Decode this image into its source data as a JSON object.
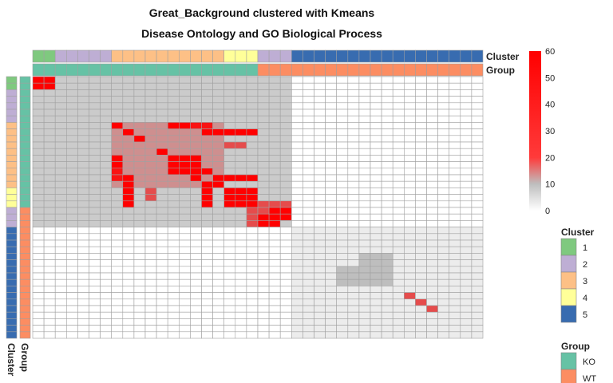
{
  "chart_data": {
    "type": "heatmap",
    "title": "Great_Background clustered with Kmeans",
    "subtitle": "Disease Ontology and GO Biological Process",
    "n_samples": 40,
    "color_scale": {
      "range": [
        0,
        60
      ],
      "ticks": [
        0,
        10,
        20,
        30,
        40,
        50,
        60
      ],
      "low_color": "#ffffff",
      "mid_color": "#bebebe",
      "high_color": "#ff0000"
    },
    "column_annotations": [
      {
        "label": "Cluster",
        "values": [
          1,
          1,
          2,
          2,
          2,
          2,
          2,
          3,
          3,
          3,
          3,
          3,
          3,
          3,
          3,
          3,
          3,
          4,
          4,
          4,
          2,
          2,
          2,
          5,
          5,
          5,
          5,
          5,
          5,
          5,
          5,
          5,
          5,
          5,
          5,
          5,
          5,
          5,
          5,
          5
        ]
      },
      {
        "label": "Group",
        "values": [
          "KO",
          "KO",
          "KO",
          "KO",
          "KO",
          "KO",
          "KO",
          "KO",
          "KO",
          "KO",
          "KO",
          "KO",
          "KO",
          "KO",
          "KO",
          "KO",
          "KO",
          "KO",
          "KO",
          "KO",
          "WT",
          "WT",
          "WT",
          "WT",
          "WT",
          "WT",
          "WT",
          "WT",
          "WT",
          "WT",
          "WT",
          "WT",
          "WT",
          "WT",
          "WT",
          "WT",
          "WT",
          "WT",
          "WT",
          "WT"
        ]
      }
    ],
    "row_annotations": [
      {
        "label": "Cluster",
        "values": [
          1,
          1,
          2,
          2,
          2,
          2,
          2,
          3,
          3,
          3,
          3,
          3,
          3,
          3,
          3,
          3,
          3,
          4,
          4,
          4,
          2,
          2,
          2,
          5,
          5,
          5,
          5,
          5,
          5,
          5,
          5,
          5,
          5,
          5,
          5,
          5,
          5,
          5,
          5,
          5
        ]
      },
      {
        "label": "Group",
        "values": [
          "KO",
          "KO",
          "KO",
          "KO",
          "KO",
          "KO",
          "KO",
          "KO",
          "KO",
          "KO",
          "KO",
          "KO",
          "KO",
          "KO",
          "KO",
          "KO",
          "KO",
          "KO",
          "KO",
          "KO",
          "WT",
          "WT",
          "WT",
          "WT",
          "WT",
          "WT",
          "WT",
          "WT",
          "WT",
          "WT",
          "WT",
          "WT",
          "WT",
          "WT",
          "WT",
          "WT",
          "WT",
          "WT",
          "WT",
          "WT"
        ]
      }
    ],
    "legends": [
      {
        "title": "Cluster",
        "items": [
          {
            "label": "1",
            "color": "#7fc97f"
          },
          {
            "label": "2",
            "color": "#beaed4"
          },
          {
            "label": "3",
            "color": "#fdc086"
          },
          {
            "label": "4",
            "color": "#ffff99"
          },
          {
            "label": "5",
            "color": "#386cb0"
          }
        ]
      },
      {
        "title": "Group",
        "items": [
          {
            "label": "KO",
            "color": "#66c2a5"
          },
          {
            "label": "WT",
            "color": "#fc8d62"
          }
        ]
      }
    ],
    "value_blocks": [
      {
        "rows": [
          0,
          22
        ],
        "cols": [
          0,
          22
        ],
        "value": 8
      },
      {
        "rows": [
          0,
          1
        ],
        "cols": [
          0,
          1
        ],
        "value": 60
      },
      {
        "rows": [
          7,
          16
        ],
        "cols": [
          7,
          16
        ],
        "value": 15
      },
      {
        "rows": [
          7,
          7
        ],
        "cols": [
          7,
          7
        ],
        "value": 32
      },
      {
        "rows": [
          7,
          7
        ],
        "cols": [
          12,
          15
        ],
        "value": 28
      },
      {
        "rows": [
          8,
          8
        ],
        "cols": [
          8,
          8
        ],
        "value": 60
      },
      {
        "rows": [
          8,
          8
        ],
        "cols": [
          15,
          15
        ],
        "value": 60
      },
      {
        "rows": [
          8,
          8
        ],
        "cols": [
          16,
          18
        ],
        "value": 60
      },
      {
        "rows": [
          9,
          9
        ],
        "cols": [
          9,
          9
        ],
        "value": 32
      },
      {
        "rows": [
          11,
          11
        ],
        "cols": [
          11,
          11
        ],
        "value": 60
      },
      {
        "rows": [
          12,
          14
        ],
        "cols": [
          12,
          14
        ],
        "value": 60
      },
      {
        "rows": [
          12,
          13
        ],
        "cols": [
          7,
          7
        ],
        "value": 32
      },
      {
        "rows": [
          14,
          14
        ],
        "cols": [
          15,
          15
        ],
        "value": 32
      },
      {
        "rows": [
          15,
          15
        ],
        "cols": [
          16,
          18
        ],
        "value": 60
      },
      {
        "rows": [
          16,
          16
        ],
        "cols": [
          16,
          16
        ],
        "value": 60
      },
      {
        "rows": [
          17,
          19
        ],
        "cols": [
          17,
          19
        ],
        "value": 60
      },
      {
        "rows": [
          16,
          19
        ],
        "cols": [
          8,
          8
        ],
        "value": 60
      },
      {
        "rows": [
          17,
          18
        ],
        "cols": [
          10,
          10
        ],
        "value": 22
      },
      {
        "rows": [
          17,
          19
        ],
        "cols": [
          15,
          15
        ],
        "value": 60
      },
      {
        "rows": [
          19,
          21
        ],
        "cols": [
          20,
          22
        ],
        "value": 22
      },
      {
        "rows": [
          20,
          21
        ],
        "cols": [
          21,
          22
        ],
        "value": 60
      },
      {
        "rows": [
          23,
          39
        ],
        "cols": [
          23,
          39
        ],
        "value": 3
      },
      {
        "rows": [
          29,
          31
        ],
        "cols": [
          27,
          30
        ],
        "value": 10
      },
      {
        "rows": [
          31,
          31
        ],
        "cols": [
          31,
          31
        ],
        "value": 10
      },
      {
        "rows": [
          33,
          33
        ],
        "cols": [
          33,
          33
        ],
        "value": 22
      },
      {
        "rows": [
          34,
          34
        ],
        "cols": [
          34,
          34
        ],
        "value": 22
      },
      {
        "rows": [
          35,
          35
        ],
        "cols": [
          35,
          35
        ],
        "value": 22
      }
    ]
  }
}
